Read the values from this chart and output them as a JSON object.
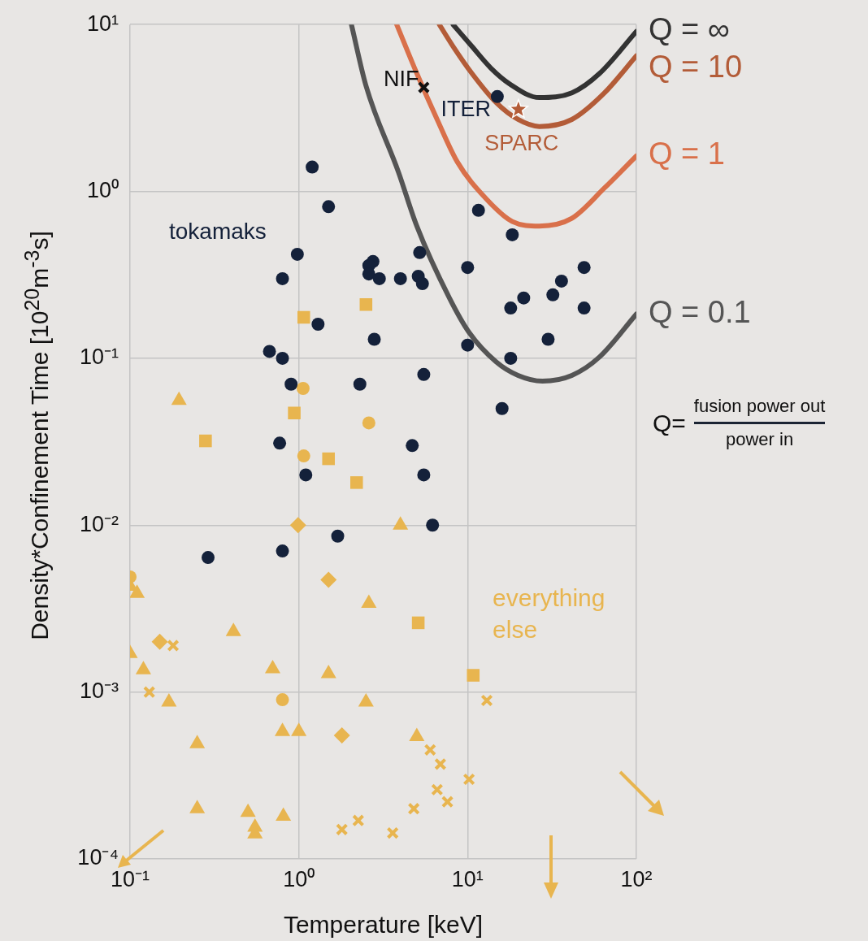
{
  "chart_data": {
    "type": "scatter",
    "xlabel": "Temperature [keV]",
    "ylabel": "Density*Confinement Time [10$^{20}$m$^{-3}$s]",
    "log": "xy",
    "grid": true,
    "legend": false,
    "xlim": [
      0.1,
      100
    ],
    "ylim": [
      0.0001,
      10
    ],
    "xticks": [
      {
        "value": 0.1,
        "label": "10⁻¹"
      },
      {
        "value": 1,
        "label": "10⁰"
      },
      {
        "value": 10,
        "label": "10¹"
      },
      {
        "value": 100,
        "label": "10²"
      }
    ],
    "yticks": [
      {
        "value": 0.0001,
        "label": "10⁻⁴"
      },
      {
        "value": 0.001,
        "label": "10⁻³"
      },
      {
        "value": 0.01,
        "label": "10⁻²"
      },
      {
        "value": 0.1,
        "label": "10⁻¹"
      },
      {
        "value": 1,
        "label": "10⁰"
      },
      {
        "value": 10,
        "label": "10¹"
      }
    ],
    "annotations": [
      "Q=",
      "fusion power out",
      "power in"
    ],
    "series": [
      {
        "type": "scatter",
        "name": "tokamaks",
        "color": "#14213a",
        "marker": "circle",
        "x": [
          1.2,
          1.5,
          0.98,
          0.8,
          2.75,
          2.6,
          2.6,
          3.0,
          4.0,
          5.2,
          5.1,
          5.4,
          10,
          11.6,
          18.4,
          21.5,
          18,
          36,
          32,
          49,
          49,
          30,
          18,
          10,
          16,
          1.3,
          2.8,
          0.67,
          0.8,
          0.9,
          2.3,
          5.5,
          0.77,
          4.7,
          1.1,
          5.5,
          6.2,
          1.7,
          0.8,
          0.29
        ],
        "values": [
          1.4,
          0.81,
          0.42,
          0.3,
          0.38,
          0.36,
          0.32,
          0.3,
          0.3,
          0.43,
          0.31,
          0.28,
          0.35,
          0.77,
          0.55,
          0.23,
          0.2,
          0.29,
          0.24,
          0.35,
          0.2,
          0.13,
          0.1,
          0.12,
          0.05,
          0.16,
          0.13,
          0.11,
          0.1,
          0.07,
          0.07,
          0.08,
          0.031,
          0.03,
          0.02,
          0.02,
          0.01,
          0.0086,
          0.007,
          0.0064
        ]
      },
      {
        "type": "scatter",
        "name": "everything else",
        "color": "#e8b54f",
        "marker": "triangle",
        "x": [
          0.195,
          4.0,
          0.1,
          0.11,
          0.1,
          0.12,
          0.17,
          0.41,
          0.7,
          1.5,
          2.6,
          2.5,
          0.25,
          0.8,
          1.0,
          0.25,
          0.5,
          0.55,
          0.55,
          0.81,
          5.0
        ],
        "values": [
          0.056,
          0.01,
          0.0043,
          0.0039,
          0.0017,
          0.00136,
          0.00087,
          0.0023,
          0.00138,
          0.00129,
          0.0034,
          0.00087,
          0.00049,
          0.00058,
          0.00058,
          0.0002,
          0.00019,
          0.000155,
          0.000141,
          0.00018,
          0.00054
        ]
      },
      {
        "type": "scatter",
        "color": "#e8b54f",
        "marker": "square",
        "x": [
          1.07,
          2.5,
          0.94,
          0.28,
          1.5,
          2.2,
          5.1,
          10.8
        ],
        "values": [
          0.176,
          0.21,
          0.047,
          0.032,
          0.025,
          0.018,
          0.0026,
          0.00126
        ]
      },
      {
        "type": "scatter",
        "color": "#e8b54f",
        "marker": "circle",
        "x": [
          1.06,
          2.6,
          1.07,
          0.1,
          0.8
        ],
        "values": [
          0.066,
          0.041,
          0.026,
          0.0049,
          0.0009
        ]
      },
      {
        "type": "scatter",
        "color": "#e8b54f",
        "marker": "diamond",
        "x": [
          0.99,
          1.5,
          0.15,
          1.8
        ],
        "values": [
          0.01,
          0.0047,
          0.002,
          0.00055
        ]
      },
      {
        "type": "scatter",
        "color": "#e8b54f",
        "marker": "cross",
        "x": [
          0.18,
          0.13,
          13,
          6.0,
          6.9,
          10.2,
          6.6,
          7.6,
          4.8,
          2.25,
          1.8,
          3.6
        ],
        "values": [
          0.0019,
          0.001,
          0.00089,
          0.00045,
          0.00037,
          0.0003,
          0.00026,
          0.00022,
          0.0002,
          0.00017,
          0.00015,
          0.000143
        ]
      },
      {
        "type": "scatter",
        "name": "ITER",
        "color": "#14213a",
        "marker": "circle",
        "x": [
          15
        ],
        "values": [
          3.7
        ]
      },
      {
        "type": "scatter",
        "name": "NIF",
        "color": "#111111",
        "marker": "cross",
        "x": [
          5.5
        ],
        "values": [
          4.2
        ]
      },
      {
        "type": "scatter",
        "name": "SPARC",
        "color": "#b35c38",
        "marker": "star",
        "x": [
          20
        ],
        "values": [
          3.1
        ]
      },
      {
        "type": "line",
        "name": "Q = ∞",
        "color": "#333333",
        "marker": "none",
        "x": [
          8.2,
          10.6,
          13.7,
          17.8,
          26.6,
          41.5,
          60.6,
          100
        ],
        "values": [
          10,
          7.4,
          5.5,
          4.4,
          3.65,
          3.9,
          5.1,
          9.1
        ]
      },
      {
        "type": "line",
        "name": "Q = 10",
        "color": "#b35c38",
        "marker": "none",
        "x": [
          6.8,
          8.2,
          10.6,
          14.8,
          19.9,
          26.6,
          41.5,
          64.8,
          100
        ],
        "values": [
          10,
          7.4,
          5.1,
          3.4,
          2.7,
          2.45,
          2.7,
          3.9,
          6.5
        ]
      },
      {
        "type": "line",
        "name": "Q = 1",
        "color": "#d9704a",
        "marker": "none",
        "x": [
          3.8,
          5.0,
          6.6,
          8.7,
          12.8,
          18.4,
          26.6,
          41.5,
          64.8,
          100
        ],
        "values": [
          10,
          5.1,
          2.7,
          1.5,
          0.91,
          0.66,
          0.62,
          0.69,
          1.05,
          1.63
        ]
      },
      {
        "type": "line",
        "name": "Q = 0.1",
        "color": "#555555",
        "marker": "none",
        "x": [
          2.05,
          2.5,
          3.9,
          5.0,
          7.8,
          10.2,
          14.8,
          19.9,
          27.8,
          41.5,
          60.6,
          100
        ],
        "values": [
          10,
          4.3,
          1.3,
          0.62,
          0.23,
          0.143,
          0.095,
          0.079,
          0.073,
          0.079,
          0.102,
          0.184
        ]
      }
    ]
  }
}
